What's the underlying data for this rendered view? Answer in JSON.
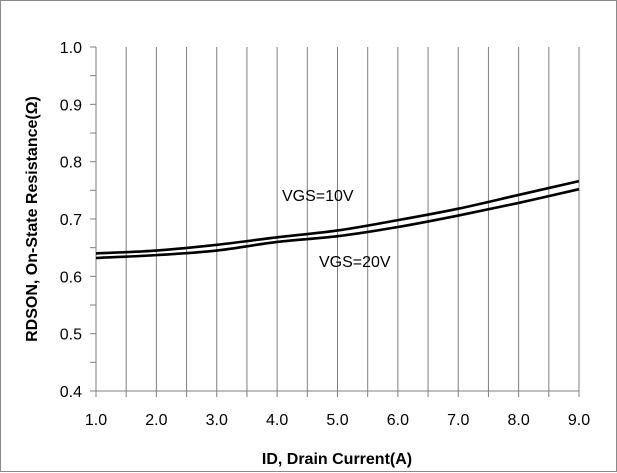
{
  "chart_data": {
    "type": "line",
    "xlabel": "ID, Drain Current(A)",
    "ylabel": "RDSON, On-State Resistance(Ω)",
    "xlim": [
      1.0,
      9.0
    ],
    "ylim": [
      0.4,
      1.0
    ],
    "x_ticks": [
      "1.0",
      "2.0",
      "3.0",
      "4.0",
      "5.0",
      "6.0",
      "7.0",
      "8.0",
      "9.0"
    ],
    "y_ticks": [
      "0.4",
      "0.5",
      "0.6",
      "0.7",
      "0.8",
      "0.9",
      "1.0"
    ],
    "grid": "vertical",
    "series": [
      {
        "name": "VGS=10V",
        "x": [
          1.0,
          2.0,
          3.0,
          4.0,
          5.0,
          6.0,
          7.0,
          8.0,
          9.0
        ],
        "values": [
          0.64,
          0.645,
          0.655,
          0.668,
          0.68,
          0.698,
          0.718,
          0.742,
          0.766
        ]
      },
      {
        "name": "VGS=20V",
        "x": [
          1.0,
          2.0,
          3.0,
          4.0,
          5.0,
          6.0,
          7.0,
          8.0,
          9.0
        ],
        "values": [
          0.632,
          0.637,
          0.645,
          0.66,
          0.67,
          0.686,
          0.706,
          0.728,
          0.752
        ]
      }
    ],
    "annotations": [
      "VGS=10V",
      "VGS=20V"
    ],
    "line_color": "#000000",
    "grid_color": "#7f7f7f"
  }
}
